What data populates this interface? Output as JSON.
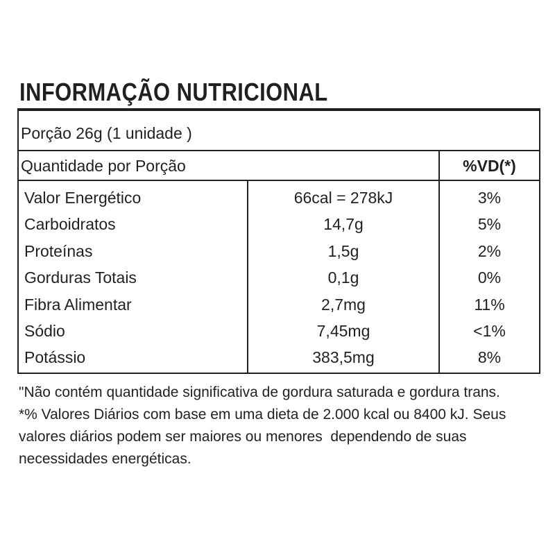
{
  "title": "INFORMAÇÃO NUTRICIONAL",
  "serving": "Porção 26g (1 unidade )",
  "table": {
    "header": [
      "Quantidade por Porção",
      "%VD(*)"
    ],
    "rows": [
      [
        "Valor Energético",
        "66cal = 278kJ",
        "3%"
      ],
      [
        "Carboidratos",
        "14,7g",
        "5%"
      ],
      [
        "Proteínas",
        "1,5g",
        "2%"
      ],
      [
        "Gorduras Totais",
        "0,1g",
        "0%"
      ],
      [
        "Fibra Alimentar",
        "2,7mg",
        "11%"
      ],
      [
        "Sódio",
        "7,45mg",
        "<1%"
      ],
      [
        "Potássio",
        "383,5mg",
        "8%"
      ]
    ]
  },
  "footnotes": [
    "\"Não contém quantidade significativa de gordura saturada e gordura trans.",
    "*% Valores Diários com base em uma dieta de 2.000 kcal ou 8400 kJ. Seus",
    "valores diários podem ser maiores ou menores  dependendo de suas",
    "necessidades energéticas."
  ]
}
